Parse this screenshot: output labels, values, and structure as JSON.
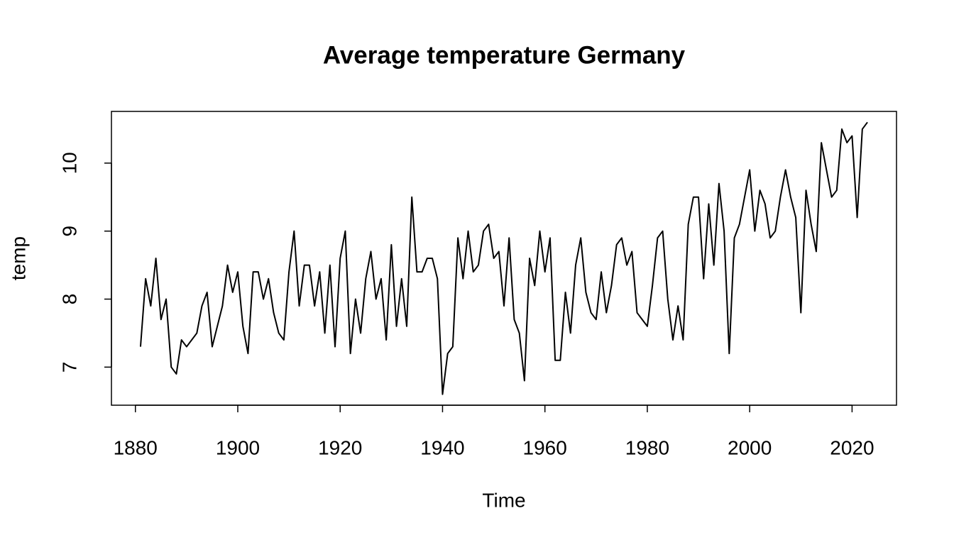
{
  "chart_data": {
    "type": "line",
    "title": "Average temperature Germany",
    "xlabel": "Time",
    "ylabel": "temp",
    "x": [
      1881,
      1882,
      1883,
      1884,
      1885,
      1886,
      1887,
      1888,
      1889,
      1890,
      1891,
      1892,
      1893,
      1894,
      1895,
      1896,
      1897,
      1898,
      1899,
      1900,
      1901,
      1902,
      1903,
      1904,
      1905,
      1906,
      1907,
      1908,
      1909,
      1910,
      1911,
      1912,
      1913,
      1914,
      1915,
      1916,
      1917,
      1918,
      1919,
      1920,
      1921,
      1922,
      1923,
      1924,
      1925,
      1926,
      1927,
      1928,
      1929,
      1930,
      1931,
      1932,
      1933,
      1934,
      1935,
      1936,
      1937,
      1938,
      1939,
      1940,
      1941,
      1942,
      1943,
      1944,
      1945,
      1946,
      1947,
      1948,
      1949,
      1950,
      1951,
      1952,
      1953,
      1954,
      1955,
      1956,
      1957,
      1958,
      1959,
      1960,
      1961,
      1962,
      1963,
      1964,
      1965,
      1966,
      1967,
      1968,
      1969,
      1970,
      1971,
      1972,
      1973,
      1974,
      1975,
      1976,
      1977,
      1978,
      1979,
      1980,
      1981,
      1982,
      1983,
      1984,
      1985,
      1986,
      1987,
      1988,
      1989,
      1990,
      1991,
      1992,
      1993,
      1994,
      1995,
      1996,
      1997,
      1998,
      1999,
      2000,
      2001,
      2002,
      2003,
      2004,
      2005,
      2006,
      2007,
      2008,
      2009,
      2010,
      2011,
      2012,
      2013,
      2014,
      2015,
      2016,
      2017,
      2018,
      2019,
      2020,
      2021,
      2022,
      2023
    ],
    "values": [
      7.3,
      8.3,
      7.9,
      8.6,
      7.7,
      8.0,
      7.0,
      6.9,
      7.4,
      7.3,
      7.4,
      7.5,
      7.9,
      8.1,
      7.3,
      7.6,
      7.9,
      8.5,
      8.1,
      8.4,
      7.6,
      7.2,
      8.4,
      8.4,
      8.0,
      8.3,
      7.8,
      7.5,
      7.4,
      8.4,
      9.0,
      7.9,
      8.5,
      8.5,
      7.9,
      8.4,
      7.5,
      8.5,
      7.3,
      8.6,
      9.0,
      7.2,
      8.0,
      7.5,
      8.3,
      8.7,
      8.0,
      8.3,
      7.4,
      8.8,
      7.6,
      8.3,
      7.6,
      9.5,
      8.4,
      8.4,
      8.6,
      8.6,
      8.3,
      6.6,
      7.2,
      7.3,
      8.9,
      8.3,
      9.0,
      8.4,
      8.5,
      9.0,
      9.1,
      8.6,
      8.7,
      7.9,
      8.9,
      7.7,
      7.5,
      6.8,
      8.6,
      8.2,
      9.0,
      8.4,
      8.9,
      7.1,
      7.1,
      8.1,
      7.5,
      8.5,
      8.9,
      8.1,
      7.8,
      7.7,
      8.4,
      7.8,
      8.2,
      8.8,
      8.9,
      8.5,
      8.7,
      7.8,
      7.7,
      7.6,
      8.2,
      8.9,
      9.0,
      8.0,
      7.4,
      7.9,
      7.4,
      9.1,
      9.5,
      9.5,
      8.3,
      9.4,
      8.5,
      9.7,
      9.0,
      7.2,
      8.9,
      9.1,
      9.5,
      9.9,
      9.0,
      9.6,
      9.4,
      8.9,
      9.0,
      9.5,
      9.9,
      9.5,
      9.2,
      7.8,
      9.6,
      9.1,
      8.7,
      10.3,
      9.9,
      9.5,
      9.6,
      10.5,
      10.3,
      10.4,
      9.2,
      10.5,
      10.6
    ],
    "color": "#000000",
    "xlim": [
      1875.32,
      2028.68
    ],
    "xticks": [
      1880,
      1900,
      1920,
      1940,
      1960,
      1980,
      2000,
      2020
    ],
    "ylim": [
      6.44,
      10.76
    ],
    "yticks": [
      7,
      8,
      9,
      10
    ]
  }
}
